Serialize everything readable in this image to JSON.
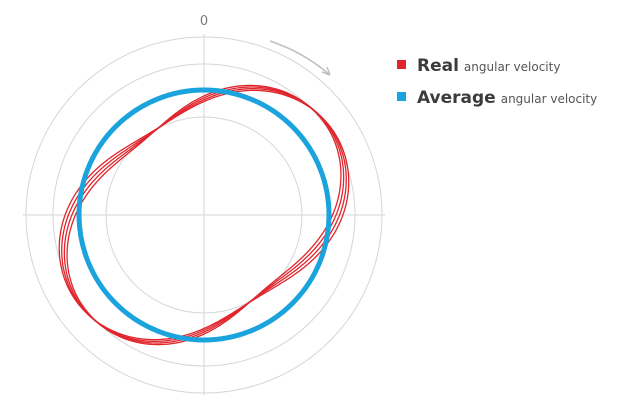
{
  "diagram": {
    "angle_zero_label": "0",
    "rotation_direction": "clockwise",
    "colors": {
      "grid": "#d6d6d6",
      "real": "#e0252c",
      "average": "#1aa3dc",
      "arrow": "#bfbfbf"
    }
  },
  "legend": {
    "items": [
      {
        "strong": "Real",
        "small": "angular velocity",
        "color": "#e0252c"
      },
      {
        "strong": "Average",
        "small": "angular velocity",
        "color": "#1aa3dc"
      }
    ]
  }
}
